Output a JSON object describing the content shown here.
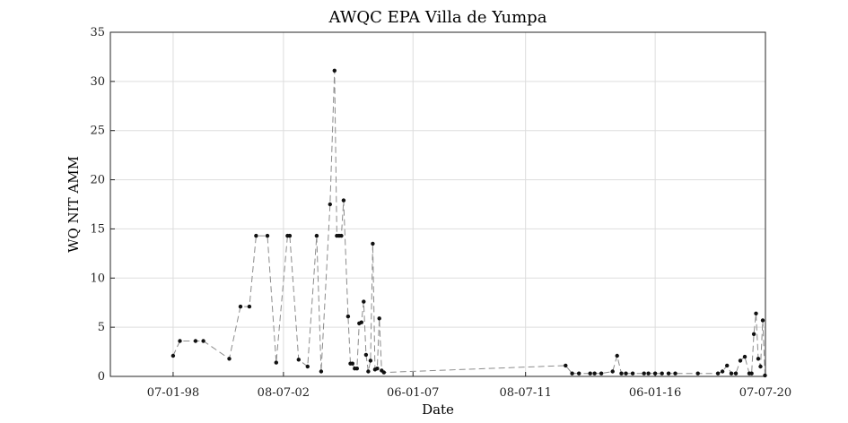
{
  "chart_data": {
    "type": "line",
    "title": "AWQC EPA Villa de Yumpa",
    "xlabel": "Date",
    "ylabel": "WQ NIT AMM",
    "x_ticks": [
      "07-01-98",
      "08-07-02",
      "06-01-07",
      "08-07-11",
      "06-01-16",
      "07-07-20"
    ],
    "y_ticks": [
      "0",
      "5",
      "10",
      "15",
      "20",
      "25",
      "30",
      "35"
    ],
    "ylim": [
      0,
      35
    ],
    "xlim": [
      "1996-03-01",
      "2020-07-07"
    ],
    "grid": true,
    "series": [
      {
        "x": [
          "1998-07-01",
          "1998-10-01",
          "1999-05-01",
          "1999-08-15",
          "2000-08-01",
          "2001-01-01",
          "2001-05-01",
          "2001-08-01",
          "2002-01-01",
          "2002-05-01",
          "2002-10-01",
          "2002-11-01",
          "2003-03-01",
          "2003-07-01",
          "2003-11-01",
          "2004-01-01",
          "2004-05-01",
          "2004-07-01",
          "2004-08-01",
          "2004-09-01",
          "2004-10-01",
          "2004-11-01",
          "2005-01-01",
          "2005-02-01",
          "2005-03-01",
          "2005-04-01",
          "2005-05-01",
          "2005-06-01",
          "2005-07-01",
          "2005-08-01",
          "2005-09-01",
          "2005-10-01",
          "2005-11-01",
          "2005-12-01",
          "2006-01-01",
          "2006-02-01",
          "2006-03-01",
          "2006-04-01",
          "2006-05-01",
          "2013-02-01",
          "2013-05-01",
          "2013-08-01",
          "2014-01-01",
          "2014-03-01",
          "2014-06-01",
          "2014-11-01",
          "2015-01-01",
          "2015-03-01",
          "2015-05-01",
          "2015-08-01",
          "2016-01-01",
          "2016-03-01",
          "2016-06-01",
          "2016-09-01",
          "2016-12-01",
          "2017-03-01",
          "2018-01-01",
          "2018-10-01",
          "2018-12-01",
          "2019-02-01",
          "2019-04-01",
          "2019-06-01",
          "2019-08-01",
          "2019-10-01",
          "2019-12-01",
          "2020-01-01",
          "2020-02-01",
          "2020-03-01",
          "2020-04-01",
          "2020-05-01",
          "2020-06-01",
          "2020-07-01"
        ],
        "y": [
          2.1,
          3.6,
          3.6,
          3.6,
          1.8,
          7.1,
          7.1,
          14.3,
          14.3,
          1.4,
          14.3,
          14.3,
          1.7,
          1.0,
          14.3,
          0.5,
          17.5,
          31.1,
          14.3,
          14.3,
          14.3,
          17.9,
          6.1,
          1.3,
          1.3,
          0.8,
          0.8,
          5.4,
          5.5,
          7.6,
          2.2,
          0.5,
          1.6,
          13.5,
          0.7,
          0.8,
          5.9,
          0.6,
          0.4,
          1.1,
          0.3,
          0.3,
          0.3,
          0.3,
          0.3,
          0.5,
          2.1,
          0.3,
          0.3,
          0.3,
          0.3,
          0.3,
          0.3,
          0.3,
          0.3,
          0.3,
          0.3,
          0.3,
          0.5,
          1.1,
          0.3,
          0.3,
          1.6,
          2.0,
          0.3,
          0.3,
          4.3,
          6.4,
          1.8,
          1.0,
          5.7,
          0.1
        ]
      }
    ]
  }
}
